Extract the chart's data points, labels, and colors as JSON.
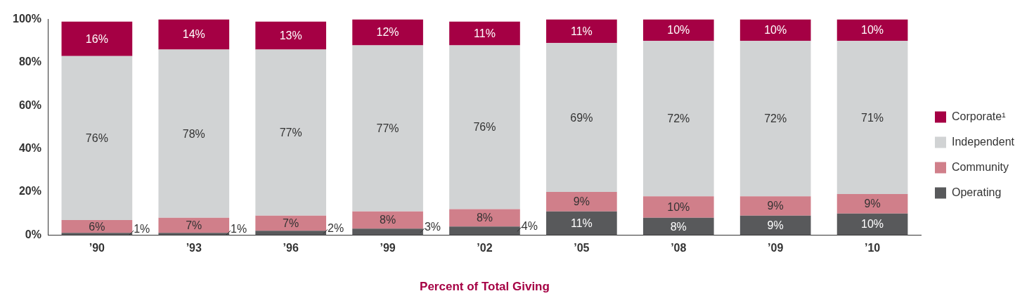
{
  "chart_data": {
    "type": "bar",
    "stacked": true,
    "categories": [
      "’90",
      "’93",
      "’96",
      "’99",
      "’02",
      "’05",
      "’08",
      "’09",
      "’10"
    ],
    "series": [
      {
        "name": "Operating",
        "color": "#58595b",
        "values": [
          1,
          1,
          2,
          3,
          4,
          11,
          8,
          9,
          10
        ],
        "value_labels": [
          "1%",
          "1%",
          "2%",
          "3%",
          "4%",
          "11%",
          "8%",
          "9%",
          "10%"
        ]
      },
      {
        "name": "Community",
        "color": "#d07f8a",
        "values": [
          6,
          7,
          7,
          8,
          8,
          9,
          10,
          9,
          9
        ],
        "value_labels": [
          "6%",
          "7%",
          "7%",
          "8%",
          "8%",
          "9%",
          "10%",
          "9%",
          "9%"
        ]
      },
      {
        "name": "Independent",
        "color": "#d1d3d4",
        "values": [
          76,
          78,
          77,
          77,
          76,
          69,
          72,
          72,
          71
        ],
        "value_labels": [
          "76%",
          "78%",
          "77%",
          "77%",
          "76%",
          "69%",
          "72%",
          "72%",
          "71%"
        ]
      },
      {
        "name": "Corporate¹",
        "color": "#a50044",
        "values": [
          16,
          14,
          13,
          12,
          11,
          11,
          10,
          10,
          10
        ],
        "value_labels": [
          "16%",
          "14%",
          "13%",
          "12%",
          "11%",
          "11%",
          "10%",
          "10%",
          "10%"
        ]
      }
    ],
    "ylim": [
      0,
      100
    ],
    "yticks": [
      {
        "value": 0,
        "label": "0%"
      },
      {
        "value": 20,
        "label": "20%"
      },
      {
        "value": 40,
        "label": "40%"
      },
      {
        "value": 60,
        "label": "60%"
      },
      {
        "value": 80,
        "label": "80%"
      },
      {
        "value": 100,
        "label": "100%"
      }
    ],
    "xlabel": "Percent of Total Giving",
    "grid": false,
    "legend": "right"
  }
}
